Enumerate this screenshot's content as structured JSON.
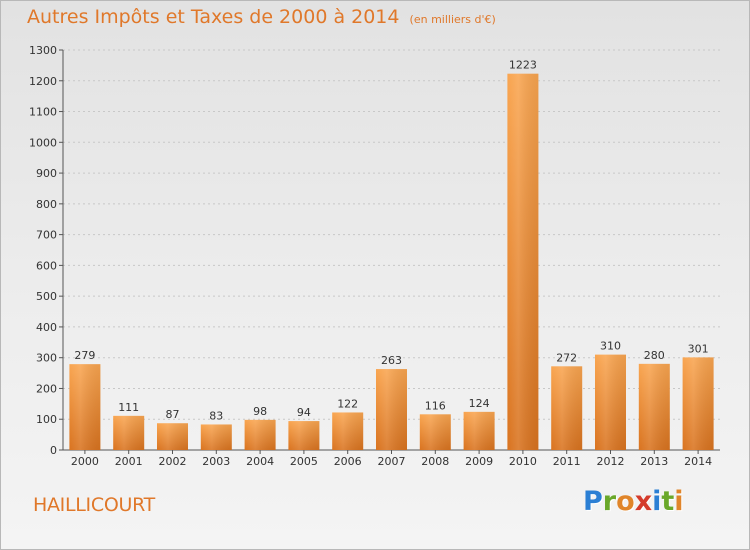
{
  "header": {
    "title": "Autres Impôts et Taxes de 2000 à 2014",
    "unit": "(en milliers d'€)"
  },
  "footer": {
    "place": "HAILLICOURT",
    "logo": [
      "P",
      "r",
      "o",
      "x",
      "i",
      "t",
      "i"
    ],
    "logo_colors": [
      "#2b7fd4",
      "#6aa82a",
      "#e0852a",
      "#d43b2b",
      "#2b7fd4",
      "#6aa82a",
      "#e0852a"
    ]
  },
  "chart_data": {
    "type": "bar",
    "title": "Autres Impôts et Taxes de 2000 à 2014",
    "subtitle": "(en milliers d'€)",
    "xlabel": "",
    "ylabel": "",
    "categories": [
      "2000",
      "2001",
      "2002",
      "2003",
      "2004",
      "2005",
      "2006",
      "2007",
      "2008",
      "2009",
      "2010",
      "2011",
      "2012",
      "2013",
      "2014"
    ],
    "values": [
      279,
      111,
      87,
      83,
      98,
      94,
      122,
      263,
      116,
      124,
      1223,
      272,
      310,
      280,
      301
    ],
    "ylim": [
      0,
      1300
    ],
    "yticks": [
      0,
      100,
      200,
      300,
      400,
      500,
      600,
      700,
      800,
      900,
      1000,
      1100,
      1200,
      1300
    ],
    "grid": true,
    "bar_color": "#f0923a"
  }
}
